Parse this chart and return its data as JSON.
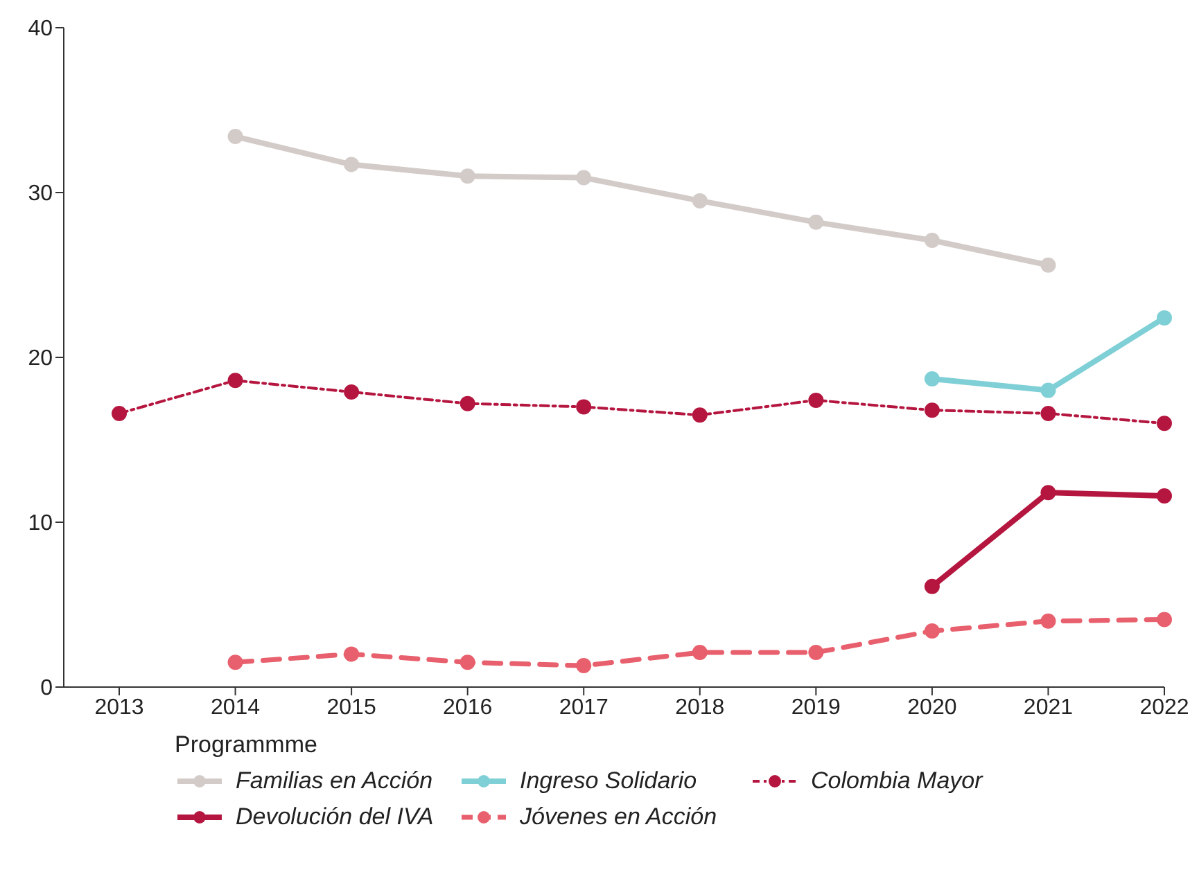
{
  "chart_data": {
    "type": "line",
    "categories": [
      "2013",
      "2014",
      "2015",
      "2016",
      "2017",
      "2018",
      "2019",
      "2020",
      "2021",
      "2022"
    ],
    "ylim": [
      0,
      40
    ],
    "yticks": [
      0,
      10,
      20,
      30,
      40
    ],
    "grid": false,
    "legend": "bottom",
    "legend_title": "Programmme",
    "marker": "circle",
    "series": [
      {
        "name": "Familias en Acción",
        "color": "#d3cbc8",
        "line_style": "solid",
        "values": [
          null,
          33.4,
          31.7,
          31.0,
          30.9,
          29.5,
          28.2,
          27.1,
          25.6,
          null
        ]
      },
      {
        "name": "Ingreso Solidario",
        "color": "#7fcfd6",
        "line_style": "solid",
        "values": [
          null,
          null,
          null,
          null,
          null,
          null,
          null,
          18.7,
          18.0,
          22.4
        ]
      },
      {
        "name": "Colombia Mayor",
        "color": "#b5163f",
        "line_style": "dotted",
        "values": [
          16.6,
          18.6,
          17.9,
          17.2,
          17.0,
          16.5,
          17.4,
          16.8,
          16.6,
          16.0
        ]
      },
      {
        "name": "Devolución del IVA",
        "color": "#b5163f",
        "line_style": "solid",
        "values": [
          null,
          null,
          null,
          null,
          null,
          null,
          null,
          6.1,
          11.8,
          11.6
        ]
      },
      {
        "name": "Jóvenes en Acción",
        "color": "#e8606d",
        "line_style": "dashed",
        "values": [
          null,
          1.5,
          2.0,
          1.5,
          1.3,
          2.1,
          2.1,
          3.4,
          4.0,
          4.1
        ]
      }
    ]
  }
}
